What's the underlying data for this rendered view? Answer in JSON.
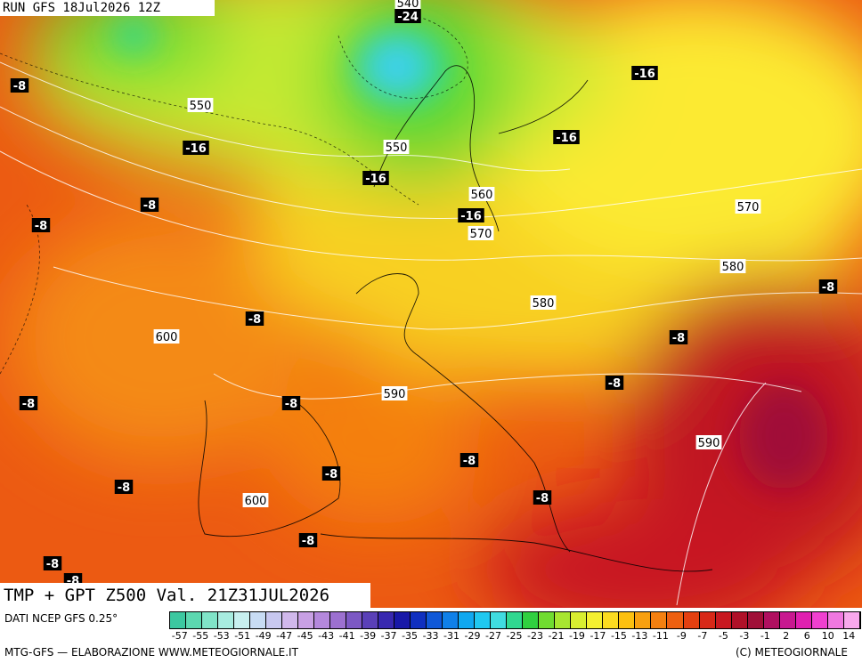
{
  "header": {
    "run": "RUN GFS 18Jul2026 12Z"
  },
  "map": {
    "contour_labels": [
      "540",
      "550",
      "550",
      "560",
      "570",
      "570",
      "580",
      "580",
      "600",
      "590",
      "590",
      "600"
    ],
    "temp_labels": [
      "-24",
      "-16",
      "-16",
      "-16",
      "-16",
      "-16",
      "-8",
      "-8",
      "-8",
      "-8",
      "-8",
      "-8",
      "-8",
      "-8",
      "-8",
      "-8",
      "-8",
      "-8",
      "-8",
      "-8",
      "-8",
      "-8"
    ]
  },
  "footer": {
    "title": "TMP + GPT Z500 Val. 21Z31JUL2026",
    "source": "DATI NCEP GFS 0.25°",
    "credit": "MTG-GFS — ELABORAZIONE WWW.METEOGIORNALE.IT",
    "copyright": "(C) METEOGIORNALE"
  },
  "colorbar": {
    "ticks": [
      "-57",
      "-55",
      "-53",
      "-51",
      "-49",
      "-47",
      "-45",
      "-43",
      "-41",
      "-39",
      "-37",
      "-35",
      "-33",
      "-31",
      "-29",
      "-27",
      "-25",
      "-23",
      "-21",
      "-19",
      "-17",
      "-15",
      "-13",
      "-11",
      "-9",
      "-7",
      "-5",
      "-3",
      "-1",
      "2",
      "6",
      "10",
      "14"
    ],
    "colors": [
      "#3cc8a0",
      "#5cd8b0",
      "#80e4c8",
      "#a8ece0",
      "#c8f0f0",
      "#c8dcf4",
      "#c8c8f0",
      "#d0b8ec",
      "#c8a0e4",
      "#b488dc",
      "#9c70d0",
      "#7c58c4",
      "#5a40b8",
      "#3828b0",
      "#1818a8",
      "#1030c0",
      "#1058d8",
      "#1080e8",
      "#10a8f0",
      "#20c8f0",
      "#40dce0",
      "#30d890",
      "#30d040",
      "#70dc30",
      "#a8e630",
      "#d8ee30",
      "#f4f030",
      "#fcdc20",
      "#fcc010",
      "#f8a010",
      "#f48010",
      "#ee6010",
      "#e44010",
      "#d82818",
      "#c81820",
      "#b01028",
      "#a01038",
      "#b01060",
      "#c81890",
      "#e020b0",
      "#f040d0",
      "#f078e0",
      "#f8a8ec"
    ]
  }
}
